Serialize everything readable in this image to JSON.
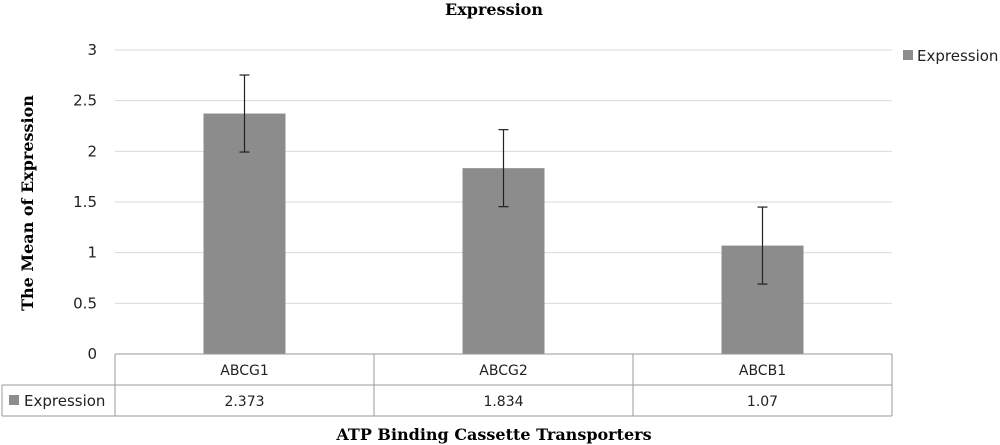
{
  "chart_data": {
    "type": "bar",
    "title": "Expression",
    "xlabel": "ATP Binding Cassette Transporters",
    "ylabel": "The Mean of Expression",
    "categories": [
      "ABCG1",
      "ABCG2",
      "ABCB1"
    ],
    "series": [
      {
        "name": "Expression",
        "values": [
          2.373,
          1.834,
          1.07
        ],
        "error_bars": [
          0.38,
          0.38,
          0.38
        ],
        "color": "#8c8c8c"
      }
    ],
    "ylim": [
      0,
      3
    ],
    "yticks": [
      "0",
      "0.5",
      "1",
      "1.5",
      "2",
      "2.5",
      "3"
    ],
    "grid": true,
    "legend": "top-right",
    "data_table": {
      "row_label": "Expression",
      "values": [
        "2.373",
        "1.834",
        "1.07"
      ]
    }
  }
}
